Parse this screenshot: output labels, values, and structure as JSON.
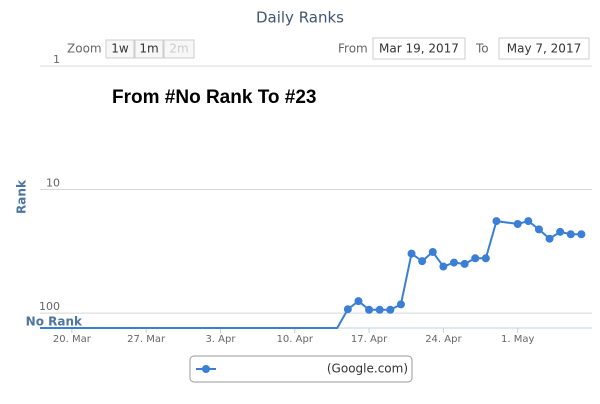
{
  "chart_data": {
    "type": "line",
    "title": "Daily Ranks",
    "zoom_label": "Zoom",
    "zoom_buttons": [
      "1w",
      "1m",
      "2m"
    ],
    "from_label": "From",
    "from_date": "Mar 19, 2017",
    "to_label": "To",
    "to_date": "May 7, 2017",
    "annotation": "From #No Rank To #23",
    "y_label": "Rank",
    "y_log": true,
    "y_reversed": true,
    "grid": true,
    "ylim": [
      1,
      132
    ],
    "yticks": [
      1,
      10,
      100,
      {
        "value": 132,
        "label": "No Rank"
      }
    ],
    "xlim": [
      "2017-03-17",
      "2017-05-08"
    ],
    "xticks": [
      {
        "value": "2017-03-20",
        "label": "20. Mar"
      },
      {
        "value": "2017-03-27",
        "label": "27. Mar"
      },
      {
        "value": "2017-04-03",
        "label": "3. Apr"
      },
      {
        "value": "2017-04-10",
        "label": "10. Apr"
      },
      {
        "value": "2017-04-17",
        "label": "17. Apr"
      },
      {
        "value": "2017-04-24",
        "label": "24. Apr"
      },
      {
        "value": "2017-05-01",
        "label": "1. May"
      }
    ],
    "x": [
      "2017-03-17",
      "2017-04-14",
      "2017-04-15",
      "2017-04-16",
      "2017-04-17",
      "2017-04-18",
      "2017-04-19",
      "2017-04-20",
      "2017-04-21",
      "2017-04-22",
      "2017-04-23",
      "2017-04-24",
      "2017-04-25",
      "2017-04-26",
      "2017-04-27",
      "2017-04-28",
      "2017-04-29",
      "2017-05-01",
      "2017-05-02",
      "2017-05-03",
      "2017-05-04",
      "2017-05-05",
      "2017-05-06",
      "2017-05-07"
    ],
    "series": [
      {
        "name": "(Google.com)",
        "color": "#3a7fd5",
        "values": [
          132,
          132,
          93,
          80,
          94,
          94,
          94,
          85,
          33,
          38,
          32,
          42,
          39,
          40,
          36,
          36,
          18,
          19,
          18,
          21,
          25,
          22,
          23,
          23
        ]
      }
    ]
  }
}
